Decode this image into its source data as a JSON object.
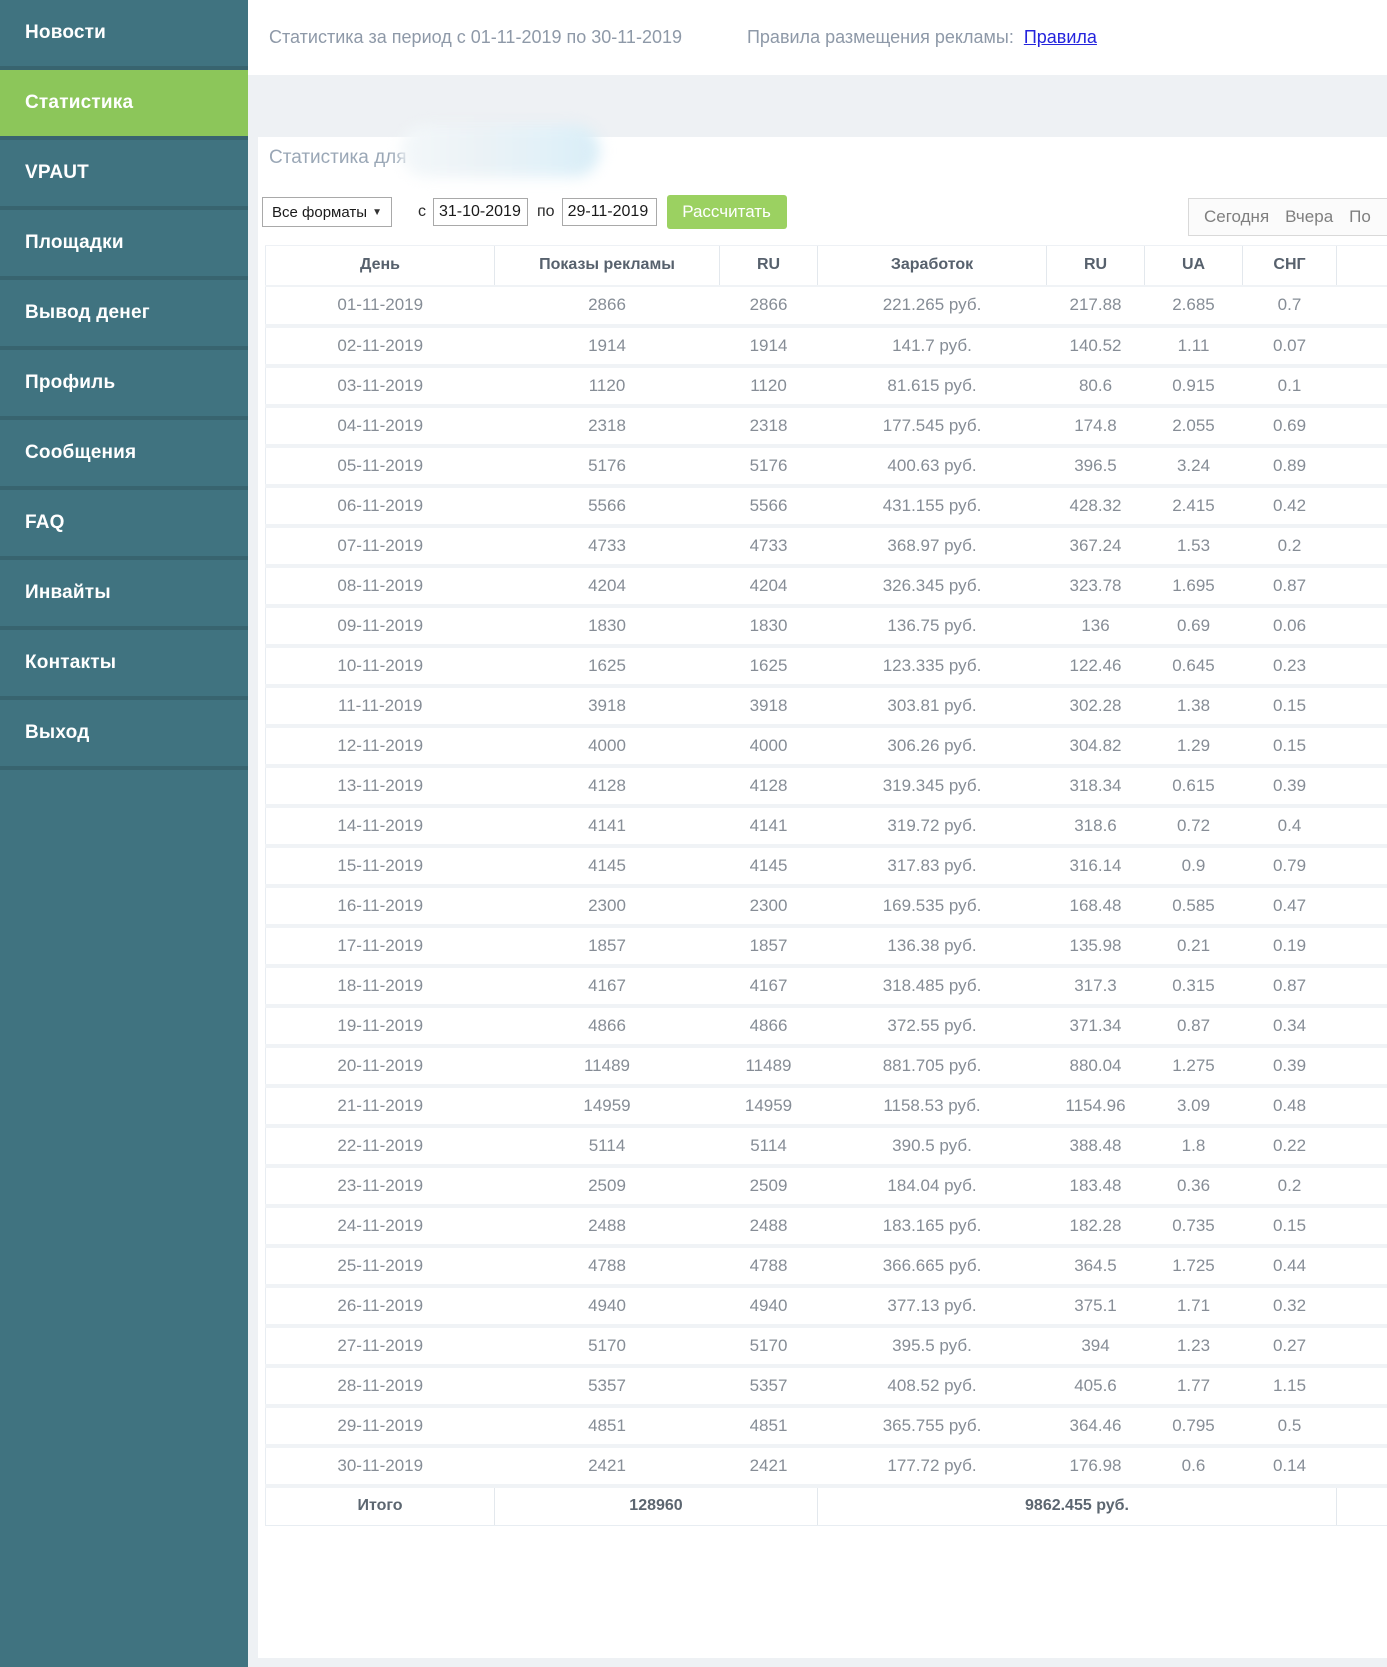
{
  "colors": {
    "sidebar_bg": "#407380",
    "sidebar_sep": "#38646f",
    "active_item_bg": "#8cc65a",
    "button_bg": "#9bd161",
    "link_blue": "#2424dd",
    "page_bg": "#eef1f4"
  },
  "sidebar": {
    "items": [
      {
        "label": "Новости",
        "active": false
      },
      {
        "label": "Статистика",
        "active": true
      },
      {
        "label": "VPAUT",
        "active": false
      },
      {
        "label": "Площадки",
        "active": false
      },
      {
        "label": "Вывод денег",
        "active": false
      },
      {
        "label": "Профиль",
        "active": false
      },
      {
        "label": "Сообщения",
        "active": false
      },
      {
        "label": "FAQ",
        "active": false
      },
      {
        "label": "Инвайты",
        "active": false
      },
      {
        "label": "Контакты",
        "active": false
      },
      {
        "label": "Выход",
        "active": false
      }
    ]
  },
  "topbar": {
    "period_title": "Статистика за период с 01-11-2019 по 30-11-2019",
    "rules_label": "Правила размещения рекламы:",
    "rules_link": "Правила"
  },
  "panel": {
    "heading": "Статистика для",
    "format_select": "Все форматы",
    "from_label": "с",
    "from_value": "31-10-2019",
    "to_label": "по",
    "to_value": "29-11-2019",
    "calc_button": "Рассчитать",
    "quick_ranges": [
      "Сегодня",
      "Вчера",
      "По"
    ]
  },
  "table": {
    "columns": [
      "День",
      "Показы рекламы",
      "RU",
      "Заработок",
      "RU",
      "UA",
      "СНГ"
    ],
    "rows": [
      [
        "01-11-2019",
        "2866",
        "2866",
        "221.265 руб.",
        "217.88",
        "2.685",
        "0.7"
      ],
      [
        "02-11-2019",
        "1914",
        "1914",
        "141.7 руб.",
        "140.52",
        "1.11",
        "0.07"
      ],
      [
        "03-11-2019",
        "1120",
        "1120",
        "81.615 руб.",
        "80.6",
        "0.915",
        "0.1"
      ],
      [
        "04-11-2019",
        "2318",
        "2318",
        "177.545 руб.",
        "174.8",
        "2.055",
        "0.69"
      ],
      [
        "05-11-2019",
        "5176",
        "5176",
        "400.63 руб.",
        "396.5",
        "3.24",
        "0.89"
      ],
      [
        "06-11-2019",
        "5566",
        "5566",
        "431.155 руб.",
        "428.32",
        "2.415",
        "0.42"
      ],
      [
        "07-11-2019",
        "4733",
        "4733",
        "368.97 руб.",
        "367.24",
        "1.53",
        "0.2"
      ],
      [
        "08-11-2019",
        "4204",
        "4204",
        "326.345 руб.",
        "323.78",
        "1.695",
        "0.87"
      ],
      [
        "09-11-2019",
        "1830",
        "1830",
        "136.75 руб.",
        "136",
        "0.69",
        "0.06"
      ],
      [
        "10-11-2019",
        "1625",
        "1625",
        "123.335 руб.",
        "122.46",
        "0.645",
        "0.23"
      ],
      [
        "11-11-2019",
        "3918",
        "3918",
        "303.81 руб.",
        "302.28",
        "1.38",
        "0.15"
      ],
      [
        "12-11-2019",
        "4000",
        "4000",
        "306.26 руб.",
        "304.82",
        "1.29",
        "0.15"
      ],
      [
        "13-11-2019",
        "4128",
        "4128",
        "319.345 руб.",
        "318.34",
        "0.615",
        "0.39"
      ],
      [
        "14-11-2019",
        "4141",
        "4141",
        "319.72 руб.",
        "318.6",
        "0.72",
        "0.4"
      ],
      [
        "15-11-2019",
        "4145",
        "4145",
        "317.83 руб.",
        "316.14",
        "0.9",
        "0.79"
      ],
      [
        "16-11-2019",
        "2300",
        "2300",
        "169.535 руб.",
        "168.48",
        "0.585",
        "0.47"
      ],
      [
        "17-11-2019",
        "1857",
        "1857",
        "136.38 руб.",
        "135.98",
        "0.21",
        "0.19"
      ],
      [
        "18-11-2019",
        "4167",
        "4167",
        "318.485 руб.",
        "317.3",
        "0.315",
        "0.87"
      ],
      [
        "19-11-2019",
        "4866",
        "4866",
        "372.55 руб.",
        "371.34",
        "0.87",
        "0.34"
      ],
      [
        "20-11-2019",
        "11489",
        "11489",
        "881.705 руб.",
        "880.04",
        "1.275",
        "0.39"
      ],
      [
        "21-11-2019",
        "14959",
        "14959",
        "1158.53 руб.",
        "1154.96",
        "3.09",
        "0.48"
      ],
      [
        "22-11-2019",
        "5114",
        "5114",
        "390.5 руб.",
        "388.48",
        "1.8",
        "0.22"
      ],
      [
        "23-11-2019",
        "2509",
        "2509",
        "184.04 руб.",
        "183.48",
        "0.36",
        "0.2"
      ],
      [
        "24-11-2019",
        "2488",
        "2488",
        "183.165 руб.",
        "182.28",
        "0.735",
        "0.15"
      ],
      [
        "25-11-2019",
        "4788",
        "4788",
        "366.665 руб.",
        "364.5",
        "1.725",
        "0.44"
      ],
      [
        "26-11-2019",
        "4940",
        "4940",
        "377.13 руб.",
        "375.1",
        "1.71",
        "0.32"
      ],
      [
        "27-11-2019",
        "5170",
        "5170",
        "395.5 руб.",
        "394",
        "1.23",
        "0.27"
      ],
      [
        "28-11-2019",
        "5357",
        "5357",
        "408.52 руб.",
        "405.6",
        "1.77",
        "1.15"
      ],
      [
        "29-11-2019",
        "4851",
        "4851",
        "365.755 руб.",
        "364.46",
        "0.795",
        "0.5"
      ],
      [
        "30-11-2019",
        "2421",
        "2421",
        "177.72 руб.",
        "176.98",
        "0.6",
        "0.14"
      ]
    ],
    "total": {
      "label": "Итого",
      "shows": "128960",
      "earnings": "9862.455 руб."
    }
  }
}
